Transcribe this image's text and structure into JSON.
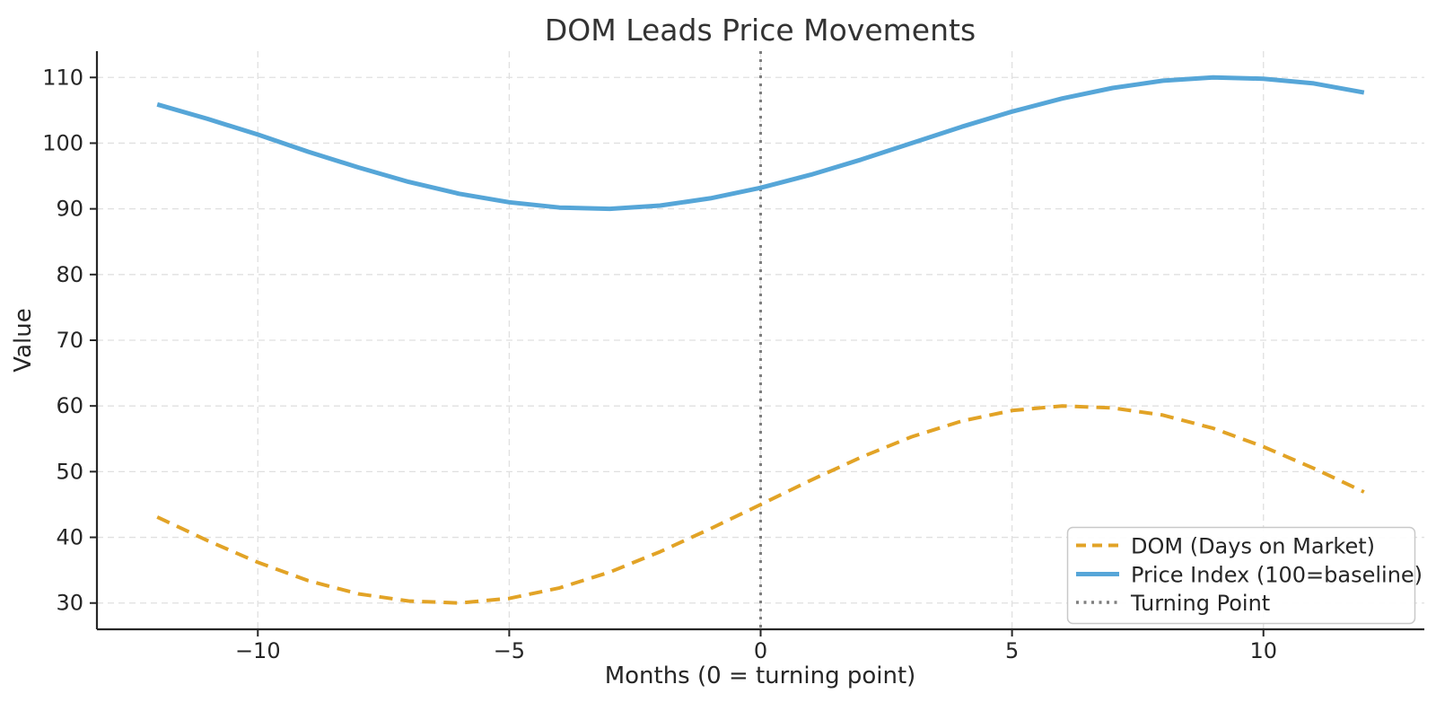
{
  "chart_data": {
    "type": "line",
    "title": "DOM Leads Price Movements",
    "xlabel": "Months (0 = turning point)",
    "ylabel": "Value",
    "xlim": [
      -13.2,
      13.2
    ],
    "ylim": [
      26,
      114
    ],
    "grid": true,
    "legend_position": "lower right",
    "xticks": {
      "values": [
        -10,
        -5,
        0,
        5,
        10
      ],
      "labels": [
        "−10",
        "−5",
        "0",
        "5",
        "10"
      ]
    },
    "yticks": {
      "values": [
        30,
        40,
        50,
        60,
        70,
        80,
        90,
        100,
        110
      ],
      "labels": [
        "30",
        "40",
        "50",
        "60",
        "70",
        "80",
        "90",
        "100",
        "110"
      ]
    },
    "x": [
      -12,
      -11,
      -10,
      -9,
      -8,
      -7,
      -6,
      -5,
      -4,
      -3,
      -2,
      -1,
      0,
      1,
      2,
      3,
      4,
      5,
      6,
      7,
      8,
      9,
      10,
      11,
      12
    ],
    "series": [
      {
        "name": "DOM (Days on Market)",
        "color": "#E2A326",
        "style": "dashed",
        "width": 4,
        "dasharray": "15 9",
        "values": [
          43.1,
          39.5,
          36.2,
          33.4,
          31.4,
          30.3,
          30.0,
          30.7,
          32.3,
          34.7,
          37.8,
          41.3,
          45.0,
          48.7,
          52.2,
          55.3,
          57.7,
          59.3,
          60.0,
          59.7,
          58.6,
          56.6,
          53.8,
          50.5,
          46.9
        ]
      },
      {
        "name": "Price Index (100=baseline)",
        "color": "#56A6D8",
        "style": "solid",
        "width": 5,
        "dasharray": "",
        "values": [
          105.9,
          103.7,
          101.3,
          98.7,
          96.3,
          94.1,
          92.3,
          91.0,
          90.2,
          90.0,
          90.5,
          91.6,
          93.2,
          95.2,
          97.5,
          100.0,
          102.5,
          104.8,
          106.8,
          108.4,
          109.5,
          110.0,
          109.8,
          109.1,
          107.7
        ]
      }
    ],
    "vline": {
      "label": "Turning Point",
      "x": 0,
      "color": "#7F7F7F",
      "style": "dotted",
      "width": 3,
      "dasharray": "3 6"
    },
    "legend": {
      "items": [
        {
          "label": "DOM (Days on Market)",
          "color": "#E2A326",
          "style": "dashed"
        },
        {
          "label": "Price Index (100=baseline)",
          "color": "#56A6D8",
          "style": "solid"
        },
        {
          "label": "Turning Point",
          "color": "#7F7F7F",
          "style": "dotted"
        }
      ]
    },
    "colors": {
      "grid": "#e0e0e0",
      "spine": "#262626",
      "text": "#262626"
    }
  }
}
